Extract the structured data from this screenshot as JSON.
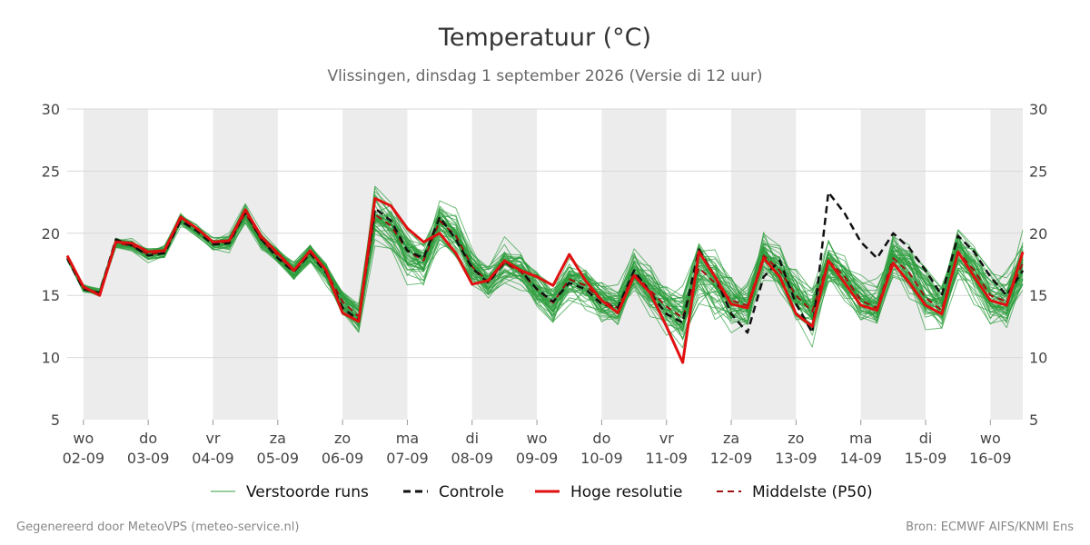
{
  "title": "Temperatuur (°C)",
  "subtitle": "Vlissingen, dinsdag  1 september 2026 (Versie di 12 uur)",
  "footer": {
    "left": "Gegenereerd door MeteoVPS (meteo-service.nl)",
    "right": "Bron: ECMWF AIFS/KNMI Ens"
  },
  "colors": {
    "ensemble": "#2e9e3e",
    "control": "#111111",
    "high_res": "#e01010",
    "median": "#a01010",
    "shade": "#ececec",
    "grid": "#d9d9d9"
  },
  "chart_data": {
    "type": "line",
    "title": "Temperatuur (°C)",
    "subtitle": "Vlissingen, dinsdag  1 september 2026 (Versie di 12 uur)",
    "x_unit": "days",
    "x_start_label": "wo 02-09",
    "x_range": [
      -0.25,
      14.5
    ],
    "time_step_days": 0.25,
    "ylim": [
      5,
      30
    ],
    "yticks": [
      5,
      10,
      15,
      20,
      25,
      30
    ],
    "grid": "horizontal",
    "shaded_days": [
      0,
      2,
      4,
      6,
      8,
      10,
      12,
      14
    ],
    "x_ticks": [
      {
        "x": 0,
        "day": "wo",
        "date": "02-09"
      },
      {
        "x": 1,
        "day": "do",
        "date": "03-09"
      },
      {
        "x": 2,
        "day": "vr",
        "date": "04-09"
      },
      {
        "x": 3,
        "day": "za",
        "date": "05-09"
      },
      {
        "x": 4,
        "day": "zo",
        "date": "06-09"
      },
      {
        "x": 5,
        "day": "ma",
        "date": "07-09"
      },
      {
        "x": 6,
        "day": "di",
        "date": "08-09"
      },
      {
        "x": 7,
        "day": "wo",
        "date": "09-09"
      },
      {
        "x": 8,
        "day": "do",
        "date": "10-09"
      },
      {
        "x": 9,
        "day": "vr",
        "date": "11-09"
      },
      {
        "x": 10,
        "day": "za",
        "date": "12-09"
      },
      {
        "x": 11,
        "day": "zo",
        "date": "13-09"
      },
      {
        "x": 12,
        "day": "ma",
        "date": "14-09"
      },
      {
        "x": 13,
        "day": "di",
        "date": "15-09"
      },
      {
        "x": 14,
        "day": "wo",
        "date": "16-09"
      }
    ],
    "legend": {
      "placement": "bottom",
      "entries": [
        "Verstoorde runs",
        "Controle",
        "Hoge resolutie",
        "Middelste (P50)"
      ]
    },
    "series": [
      {
        "name": "Hoge resolutie",
        "style": "solid",
        "x0": -0.25,
        "values": [
          18.2,
          15.7,
          15.0,
          19.3,
          19.2,
          18.5,
          18.6,
          21.3,
          20.4,
          19.3,
          19.4,
          21.9,
          19.7,
          18.4,
          17.0,
          18.6,
          17.0,
          13.6,
          12.9,
          22.8,
          22.2,
          20.4,
          19.3,
          20.0,
          18.4,
          15.9,
          16.2,
          17.8,
          17.0,
          16.5,
          15.8,
          18.3,
          16.2,
          14.6,
          13.6,
          16.6,
          15.2,
          12.5,
          9.6,
          18.5,
          16.5,
          14.3,
          14.0,
          18.0,
          16.5,
          13.5,
          12.5,
          17.8,
          16.0,
          14.2,
          13.8,
          17.6,
          16.0,
          14.2,
          13.5,
          18.5,
          16.5,
          14.6,
          14.2,
          18.5
        ]
      },
      {
        "name": "Controle",
        "style": "dashed",
        "x0": -0.25,
        "values": [
          18.0,
          15.5,
          15.2,
          19.5,
          19.0,
          18.2,
          18.4,
          21.0,
          20.2,
          19.1,
          19.2,
          21.7,
          19.5,
          18.0,
          16.9,
          18.4,
          16.8,
          14.0,
          13.0,
          22.0,
          21.0,
          18.6,
          18.0,
          21.3,
          19.5,
          17.2,
          16.0,
          17.7,
          17.0,
          15.5,
          14.5,
          16.0,
          15.5,
          14.3,
          14.0,
          17.0,
          15.2,
          13.5,
          12.8,
          18.7,
          16.5,
          13.5,
          12.0,
          16.5,
          17.8,
          14.3,
          12.0,
          23.3,
          21.6,
          19.3,
          18.0,
          20.0,
          18.8,
          17.0,
          15.0,
          19.8,
          18.5,
          16.5,
          15.0,
          17.0
        ]
      },
      {
        "name": "Middelste (P50)",
        "style": "dashed",
        "x0": -0.25,
        "values": [
          18.0,
          15.6,
          15.2,
          19.2,
          19.0,
          18.3,
          18.5,
          21.1,
          20.3,
          19.2,
          19.3,
          21.6,
          19.4,
          18.2,
          16.9,
          18.4,
          16.9,
          14.5,
          13.3,
          21.5,
          20.6,
          18.6,
          17.8,
          21.0,
          19.8,
          17.3,
          16.1,
          17.6,
          16.9,
          15.5,
          14.4,
          16.3,
          15.8,
          14.6,
          14.0,
          16.8,
          15.4,
          14.1,
          13.2,
          17.2,
          16.0,
          14.6,
          14.2,
          18.2,
          17.0,
          15.0,
          13.7,
          17.8,
          16.5,
          14.6,
          14.0,
          18.0,
          16.8,
          14.8,
          13.8,
          18.5,
          17.0,
          15.0,
          14.5,
          17.6
        ]
      }
    ],
    "ensemble": {
      "name": "Verstoorde runs",
      "members": 50,
      "x0": -0.25,
      "median": [
        18.0,
        15.6,
        15.2,
        19.2,
        19.0,
        18.3,
        18.5,
        21.1,
        20.3,
        19.2,
        19.3,
        21.6,
        19.4,
        18.2,
        16.9,
        18.4,
        16.9,
        14.5,
        13.3,
        21.5,
        20.6,
        18.6,
        17.8,
        21.0,
        19.8,
        17.3,
        16.1,
        17.6,
        16.9,
        15.5,
        14.4,
        16.3,
        15.8,
        14.6,
        14.0,
        16.8,
        15.4,
        14.1,
        13.2,
        17.2,
        16.0,
        14.6,
        14.2,
        18.2,
        17.0,
        15.0,
        13.7,
        17.8,
        16.5,
        14.6,
        14.0,
        18.0,
        16.8,
        14.8,
        13.8,
        18.5,
        17.0,
        15.0,
        14.5,
        17.6
      ],
      "spread": [
        0.3,
        0.4,
        0.4,
        0.6,
        0.6,
        0.7,
        0.7,
        0.7,
        0.7,
        0.7,
        0.8,
        0.8,
        0.9,
        0.9,
        1.0,
        1.0,
        1.1,
        1.4,
        1.5,
        2.4,
        2.2,
        2.5,
        2.3,
        2.4,
        2.2,
        1.9,
        2.0,
        2.0,
        2.0,
        2.0,
        2.0,
        2.1,
        2.1,
        2.2,
        2.1,
        2.4,
        2.4,
        2.4,
        2.6,
        3.0,
        3.0,
        2.9,
        2.9,
        2.7,
        2.7,
        2.7,
        2.6,
        2.4,
        2.5,
        2.5,
        2.5,
        2.8,
        2.8,
        2.8,
        2.7,
        3.0,
        3.0,
        2.9,
        2.9,
        3.0
      ]
    }
  }
}
